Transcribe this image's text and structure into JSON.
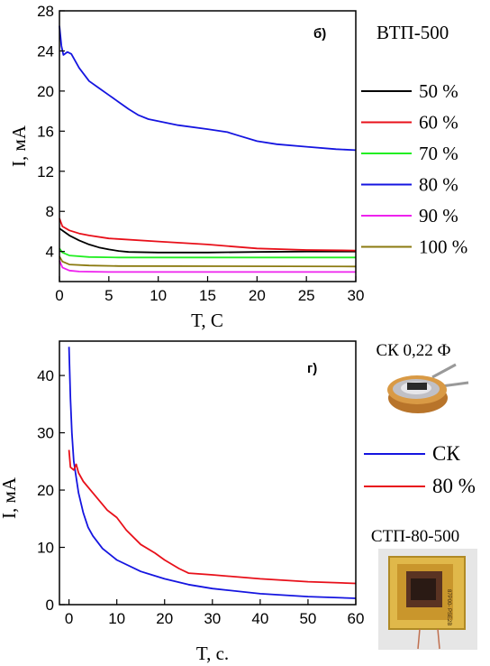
{
  "chart_data": [
    {
      "type": "line",
      "panel_label": "б)",
      "title": "ВТП-500",
      "xlabel": "T, C",
      "ylabel": "I, мА",
      "xlim": [
        0,
        30
      ],
      "ylim": [
        1,
        28
      ],
      "xticks": [
        "0",
        "5",
        "10",
        "15",
        "20",
        "25",
        "30"
      ],
      "yticks": [
        "4",
        "8",
        "12",
        "16",
        "20",
        "24",
        "28"
      ],
      "legend_position": "right",
      "grid": false,
      "series": [
        {
          "name": "50 %",
          "color": "#000000",
          "points": [
            [
              0,
              6.3
            ],
            [
              1,
              5.6
            ],
            [
              2,
              5.1
            ],
            [
              3,
              4.7
            ],
            [
              4,
              4.4
            ],
            [
              5,
              4.2
            ],
            [
              6,
              4.05
            ],
            [
              7,
              3.95
            ],
            [
              10,
              3.9
            ],
            [
              15,
              3.9
            ],
            [
              20,
              3.95
            ],
            [
              25,
              4.0
            ],
            [
              30,
              4.0
            ]
          ]
        },
        {
          "name": "60 %",
          "color": "#e8101a",
          "points": [
            [
              0,
              7.3
            ],
            [
              0.3,
              6.5
            ],
            [
              1,
              6.1
            ],
            [
              2,
              5.8
            ],
            [
              3,
              5.6
            ],
            [
              5,
              5.3
            ],
            [
              10,
              5.0
            ],
            [
              15,
              4.7
            ],
            [
              20,
              4.3
            ],
            [
              25,
              4.15
            ],
            [
              30,
              4.1
            ]
          ]
        },
        {
          "name": "70 %",
          "color": "#22ee22",
          "points": [
            [
              0,
              4.3
            ],
            [
              0.3,
              3.9
            ],
            [
              1,
              3.6
            ],
            [
              3,
              3.45
            ],
            [
              6,
              3.4
            ],
            [
              10,
              3.4
            ],
            [
              20,
              3.4
            ],
            [
              30,
              3.4
            ]
          ]
        },
        {
          "name": "80 %",
          "color": "#1515e0",
          "points": [
            [
              0,
              26.5
            ],
            [
              0.2,
              24.5
            ],
            [
              0.4,
              23.6
            ],
            [
              0.8,
              23.9
            ],
            [
              1.2,
              23.7
            ],
            [
              2,
              22.3
            ],
            [
              3,
              21.0
            ],
            [
              4,
              20.3
            ],
            [
              5,
              19.6
            ],
            [
              6,
              18.9
            ],
            [
              7,
              18.2
            ],
            [
              8,
              17.6
            ],
            [
              9,
              17.2
            ],
            [
              10,
              17.0
            ],
            [
              12,
              16.6
            ],
            [
              15,
              16.2
            ],
            [
              17,
              15.9
            ],
            [
              18,
              15.6
            ],
            [
              20,
              15.0
            ],
            [
              22,
              14.7
            ],
            [
              25,
              14.45
            ],
            [
              28,
              14.2
            ],
            [
              30,
              14.1
            ]
          ]
        },
        {
          "name": "90 %",
          "color": "#ee22ee",
          "points": [
            [
              0,
              3.1
            ],
            [
              0.3,
              2.4
            ],
            [
              1,
              2.1
            ],
            [
              2,
              2.0
            ],
            [
              5,
              1.95
            ],
            [
              30,
              1.95
            ]
          ]
        },
        {
          "name": "100 %",
          "color": "#8b7a10",
          "points": [
            [
              0,
              3.5
            ],
            [
              0.3,
              3.0
            ],
            [
              1,
              2.7
            ],
            [
              3,
              2.6
            ],
            [
              6,
              2.55
            ],
            [
              30,
              2.5
            ]
          ]
        }
      ]
    },
    {
      "type": "line",
      "panel_label": "г)",
      "xlabel": "T, c.",
      "ylabel": "I, мА",
      "xlim": [
        -2,
        60
      ],
      "ylim": [
        0,
        46
      ],
      "xticks": [
        "0",
        "10",
        "20",
        "30",
        "40",
        "50",
        "60"
      ],
      "yticks": [
        "0",
        "10",
        "20",
        "30",
        "40"
      ],
      "legend_position": "right",
      "grid": false,
      "series": [
        {
          "name": "СК",
          "color": "#1515e0",
          "points": [
            [
              0,
              45
            ],
            [
              0.3,
              36
            ],
            [
              0.6,
              30
            ],
            [
              1,
              25
            ],
            [
              2,
              19.5
            ],
            [
              3,
              16
            ],
            [
              4,
              13.5
            ],
            [
              5,
              12
            ],
            [
              7,
              9.8
            ],
            [
              10,
              7.8
            ],
            [
              15,
              5.8
            ],
            [
              20,
              4.5
            ],
            [
              25,
              3.5
            ],
            [
              30,
              2.8
            ],
            [
              40,
              1.9
            ],
            [
              50,
              1.4
            ],
            [
              60,
              1.1
            ]
          ]
        },
        {
          "name": "80 %",
          "color": "#e8101a",
          "points": [
            [
              0,
              27
            ],
            [
              0.3,
              24
            ],
            [
              1,
              23.5
            ],
            [
              1.5,
              24.5
            ],
            [
              2,
              23
            ],
            [
              3,
              21.5
            ],
            [
              5,
              19.5
            ],
            [
              8,
              16.5
            ],
            [
              10,
              15.2
            ],
            [
              12,
              13
            ],
            [
              15,
              10.5
            ],
            [
              18,
              9.0
            ],
            [
              20,
              7.8
            ],
            [
              23,
              6.3
            ],
            [
              25,
              5.5
            ],
            [
              30,
              5.2
            ],
            [
              40,
              4.5
            ],
            [
              50,
              4.0
            ],
            [
              60,
              3.7
            ]
          ]
        }
      ]
    }
  ],
  "insets": {
    "sk_label": "СК 0,22 Ф",
    "stp_label": "СТП-80-500",
    "stp_photo_text": "87P00-\nPSE2B"
  }
}
